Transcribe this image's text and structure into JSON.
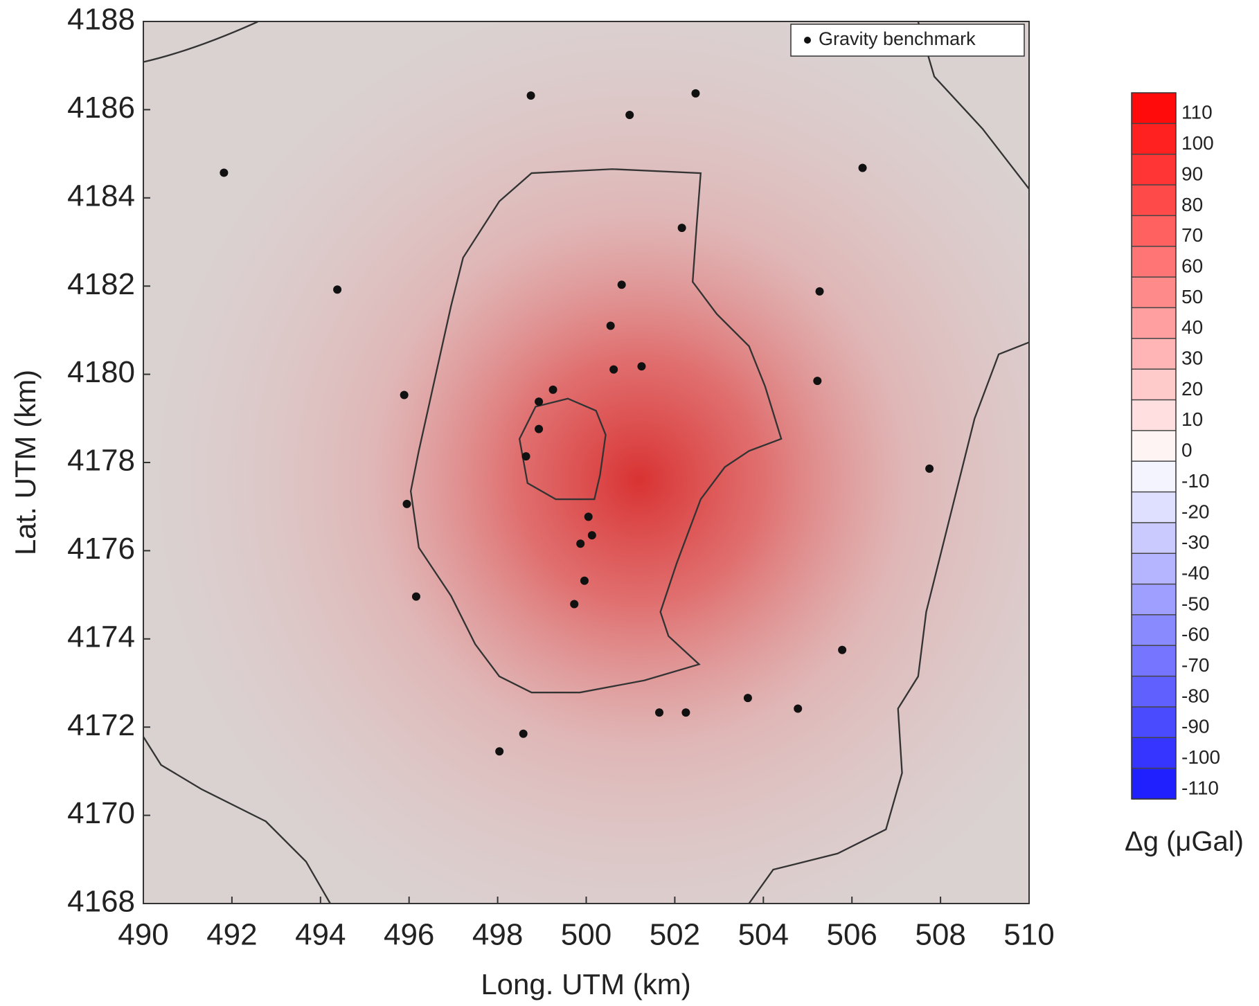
{
  "chart_data": {
    "type": "scatter",
    "xlabel": "Long. UTM (km)",
    "ylabel": "Lat. UTM (km)",
    "xlim": [
      490,
      510
    ],
    "ylim": [
      4168,
      4188
    ],
    "xticks": [
      490,
      492,
      494,
      496,
      498,
      500,
      502,
      504,
      506,
      508,
      510
    ],
    "yticks": [
      4168,
      4170,
      4172,
      4174,
      4176,
      4178,
      4180,
      4182,
      4184,
      4186,
      4188
    ],
    "series": [
      {
        "name": "Gravity benchmark",
        "color": "#111111",
        "x": [
          498.75,
          502.47,
          500.98,
          491.82,
          506.24,
          502.16,
          494.38,
          500.8,
          505.27,
          500.55,
          500.62,
          501.25,
          505.22,
          495.89,
          499.25,
          498.93,
          498.93,
          498.64,
          507.75,
          495.95,
          500.05,
          500.13,
          499.87,
          499.96,
          496.16,
          499.73,
          505.78,
          503.65,
          504.78,
          501.65,
          502.25,
          498.58,
          498.04
        ],
        "values": [
          4186.32,
          4186.37,
          4185.88,
          4184.57,
          4184.68,
          4183.32,
          4181.92,
          4182.03,
          4181.88,
          4181.1,
          4180.11,
          4180.18,
          4179.85,
          4179.53,
          4179.65,
          4179.38,
          4178.76,
          4178.14,
          4177.86,
          4177.06,
          4176.77,
          4176.35,
          4176.16,
          4175.32,
          4174.96,
          4174.79,
          4173.75,
          4172.66,
          4172.42,
          4172.33,
          4172.33,
          4171.85,
          4171.45
        ]
      }
    ],
    "legend": "upper right",
    "colorbar": {
      "label": "Δg (μGal)",
      "clim": [
        -110,
        120
      ],
      "ticks": [
        110,
        100,
        90,
        80,
        70,
        60,
        50,
        40,
        30,
        20,
        10,
        0,
        -10,
        -20,
        -30,
        -40,
        -50,
        -60,
        -70,
        -80,
        -90,
        -100,
        -110
      ],
      "colormap": [
        "#0000ff",
        "#ffffff",
        "#ff0000"
      ]
    }
  }
}
